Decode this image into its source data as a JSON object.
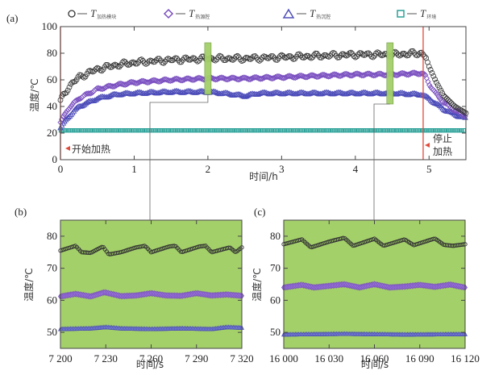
{
  "legend": [
    {
      "symbol": "circle",
      "label": "T",
      "sub": "加热模块",
      "color": "#333333"
    },
    {
      "symbol": "diamond",
      "label": "T",
      "sub": "热源腔",
      "color": "#7a4fc0"
    },
    {
      "symbol": "triangle",
      "label": "T",
      "sub": "热沉腔",
      "color": "#5050b8"
    },
    {
      "symbol": "square",
      "label": "T",
      "sub": "环境",
      "color": "#2aa198"
    }
  ],
  "colors": {
    "module": "#333333",
    "source": "#7a4fc0",
    "sink": "#4848b8",
    "ambient": "#2aa198",
    "highlight": "#a4d06a",
    "marker_line": "#e04a3a"
  },
  "chart_data": [
    {
      "id": "a",
      "panel_label": "(a)",
      "type": "scatter",
      "xlabel": "时间/h",
      "ylabel": "温度/℃",
      "xlim": [
        0,
        5.5
      ],
      "ylim": [
        0,
        100
      ],
      "xticks": [
        "0",
        "1",
        "2",
        "3",
        "4",
        "5"
      ],
      "yticks": [
        "0",
        "20",
        "40",
        "60",
        "80",
        "100"
      ],
      "annotations": [
        {
          "text": "开始加热",
          "x": 0,
          "line": "vertical"
        },
        {
          "text": "停止\n加热",
          "x": 4.92,
          "line": "vertical"
        }
      ],
      "highlight_windows_h": [
        2.0,
        4.47
      ],
      "series": [
        {
          "name": "T加热模块",
          "x": [
            0,
            0.1,
            0.25,
            0.5,
            0.75,
            1,
            1.5,
            2,
            2.5,
            3,
            3.5,
            4,
            4.5,
            4.9,
            4.95,
            5.0,
            5.1,
            5.2,
            5.35,
            5.5
          ],
          "y": [
            44,
            54,
            62,
            68,
            71,
            73,
            75,
            76,
            76,
            77,
            78,
            79,
            79,
            80,
            78,
            70,
            58,
            48,
            40,
            35
          ]
        },
        {
          "name": "T热源腔",
          "x": [
            0,
            0.1,
            0.25,
            0.5,
            0.75,
            1,
            1.5,
            2,
            2.5,
            3,
            3.5,
            4,
            4.5,
            4.9,
            4.95,
            5.0,
            5.1,
            5.2,
            5.35,
            5.5
          ],
          "y": [
            28,
            38,
            46,
            53,
            56,
            58,
            60,
            61,
            61,
            62,
            63,
            64,
            64,
            65,
            63,
            57,
            49,
            43,
            37,
            33
          ]
        },
        {
          "name": "T热沉腔",
          "x": [
            0,
            0.1,
            0.25,
            0.5,
            0.75,
            1,
            1.5,
            2,
            2.2,
            2.5,
            2.7,
            3,
            3.5,
            4,
            4.5,
            4.9,
            5.0,
            5.1,
            5.2,
            5.35,
            5.5
          ],
          "y": [
            24,
            32,
            40,
            46,
            49,
            50,
            51,
            51,
            50,
            48,
            50,
            50,
            50,
            50,
            50,
            49,
            46,
            42,
            38,
            34,
            31
          ]
        },
        {
          "name": "T环境",
          "x": [
            0,
            5.5
          ],
          "y": [
            22,
            22
          ]
        }
      ]
    },
    {
      "id": "b",
      "panel_label": "(b)",
      "type": "line",
      "xlabel": "时间/s",
      "ylabel": "温度/℃",
      "xlim": [
        7200,
        7320
      ],
      "ylim": [
        45,
        85
      ],
      "xticks": [
        "7 200",
        "7 230",
        "7 260",
        "7 290",
        "7 320"
      ],
      "yticks": [
        "50",
        "60",
        "70",
        "80"
      ],
      "background": "#a4d06a",
      "series": [
        {
          "name": "T加热模块",
          "x": [
            7200,
            7210,
            7214,
            7220,
            7228,
            7232,
            7240,
            7250,
            7256,
            7260,
            7272,
            7276,
            7280,
            7292,
            7296,
            7300,
            7312,
            7316,
            7320
          ],
          "y": [
            75.5,
            77,
            75,
            74.8,
            76.8,
            74.3,
            75,
            76.5,
            77,
            75,
            76.8,
            77,
            75,
            76.8,
            77,
            75,
            76.5,
            75,
            76.5
          ]
        },
        {
          "name": "T热源腔",
          "x": [
            7200,
            7210,
            7220,
            7229,
            7240,
            7250,
            7260,
            7270,
            7280,
            7290,
            7300,
            7310,
            7320
          ],
          "y": [
            61.2,
            62,
            61.2,
            62.5,
            61.3,
            61.5,
            62.2,
            61.5,
            61.4,
            62.2,
            61.5,
            61.8,
            61.4
          ]
        },
        {
          "name": "T热沉腔",
          "x": [
            7200,
            7220,
            7230,
            7240,
            7260,
            7280,
            7300,
            7310,
            7320
          ],
          "y": [
            51,
            51.2,
            51.6,
            51.2,
            51,
            51.2,
            51,
            51.6,
            51.4
          ]
        }
      ]
    },
    {
      "id": "c",
      "panel_label": "(c)",
      "type": "line",
      "xlabel": "时间/s",
      "ylabel": "温度/℃",
      "xlim": [
        16000,
        16120
      ],
      "ylim": [
        45,
        85
      ],
      "xticks": [
        "16 000",
        "16 030",
        "16 060",
        "16 090",
        "16 120"
      ],
      "yticks": [
        "50",
        "60",
        "70",
        "80"
      ],
      "background": "#a4d06a",
      "series": [
        {
          "name": "T加热模块",
          "x": [
            16000,
            16012,
            16018,
            16030,
            16040,
            16046,
            16060,
            16066,
            16080,
            16086,
            16100,
            16106,
            16112,
            16120
          ],
          "y": [
            77.5,
            79,
            76.5,
            78.3,
            79.5,
            77,
            79.2,
            77,
            79,
            77.2,
            79.3,
            77.3,
            77,
            77.5
          ]
        },
        {
          "name": "T热源腔",
          "x": [
            16000,
            16012,
            16020,
            16030,
            16040,
            16050,
            16060,
            16070,
            16080,
            16090,
            16100,
            16110,
            16120
          ],
          "y": [
            64,
            64.8,
            64,
            64.5,
            65,
            64,
            65,
            64,
            64.3,
            64.8,
            64.2,
            64.9,
            64
          ]
        },
        {
          "name": "T热沉腔",
          "x": [
            16000,
            16040,
            16080,
            16120
          ],
          "y": [
            49.3,
            49.5,
            49.3,
            49.4
          ]
        }
      ]
    }
  ]
}
